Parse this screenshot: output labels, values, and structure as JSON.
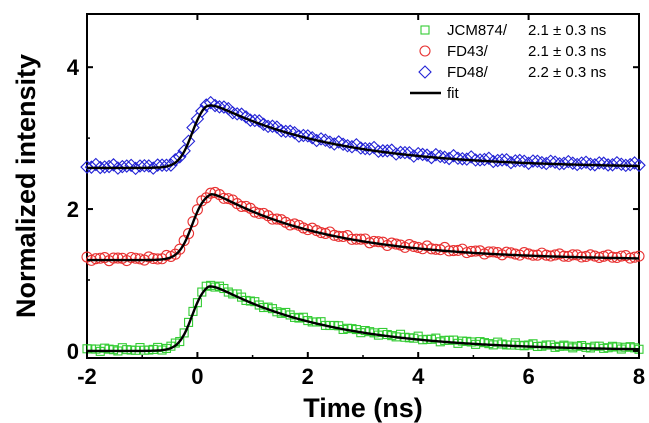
{
  "chart_data": {
    "type": "scatter",
    "xlabel": "Time (ns)",
    "ylabel": "Normalized intensity",
    "xlim": [
      -2,
      8
    ],
    "ylim": [
      -0.1,
      4.75
    ],
    "xticks": [
      -2,
      0,
      2,
      4,
      6,
      8
    ],
    "yticks": [
      0,
      2,
      4
    ],
    "grid": false,
    "legend_position": "top-right",
    "series": [
      {
        "name": "JCM874/",
        "lifetime_label": "2.1 ± 0.3 ns",
        "marker": "square",
        "color": "#33cc33",
        "baseline": 0.02,
        "peak": 1.0,
        "tau_ns": 2.1,
        "rise_center_ns": -0.1,
        "peak_time_ns": 0.2
      },
      {
        "name": "FD43/",
        "lifetime_label": "2.1 ± 0.3 ns",
        "marker": "circle",
        "color": "#e83030",
        "baseline": 1.3,
        "peak": 2.28,
        "tau_ns": 2.1,
        "rise_center_ns": -0.1,
        "peak_time_ns": 0.25
      },
      {
        "name": "FD48/",
        "lifetime_label": "2.2 ± 0.3 ns",
        "marker": "diamond",
        "color": "#2323d6",
        "baseline": 2.6,
        "peak": 3.57,
        "tau_ns": 2.2,
        "rise_center_ns": -0.1,
        "peak_time_ns": 0.15
      }
    ],
    "fit": {
      "name": "fit",
      "color": "#000000"
    }
  }
}
